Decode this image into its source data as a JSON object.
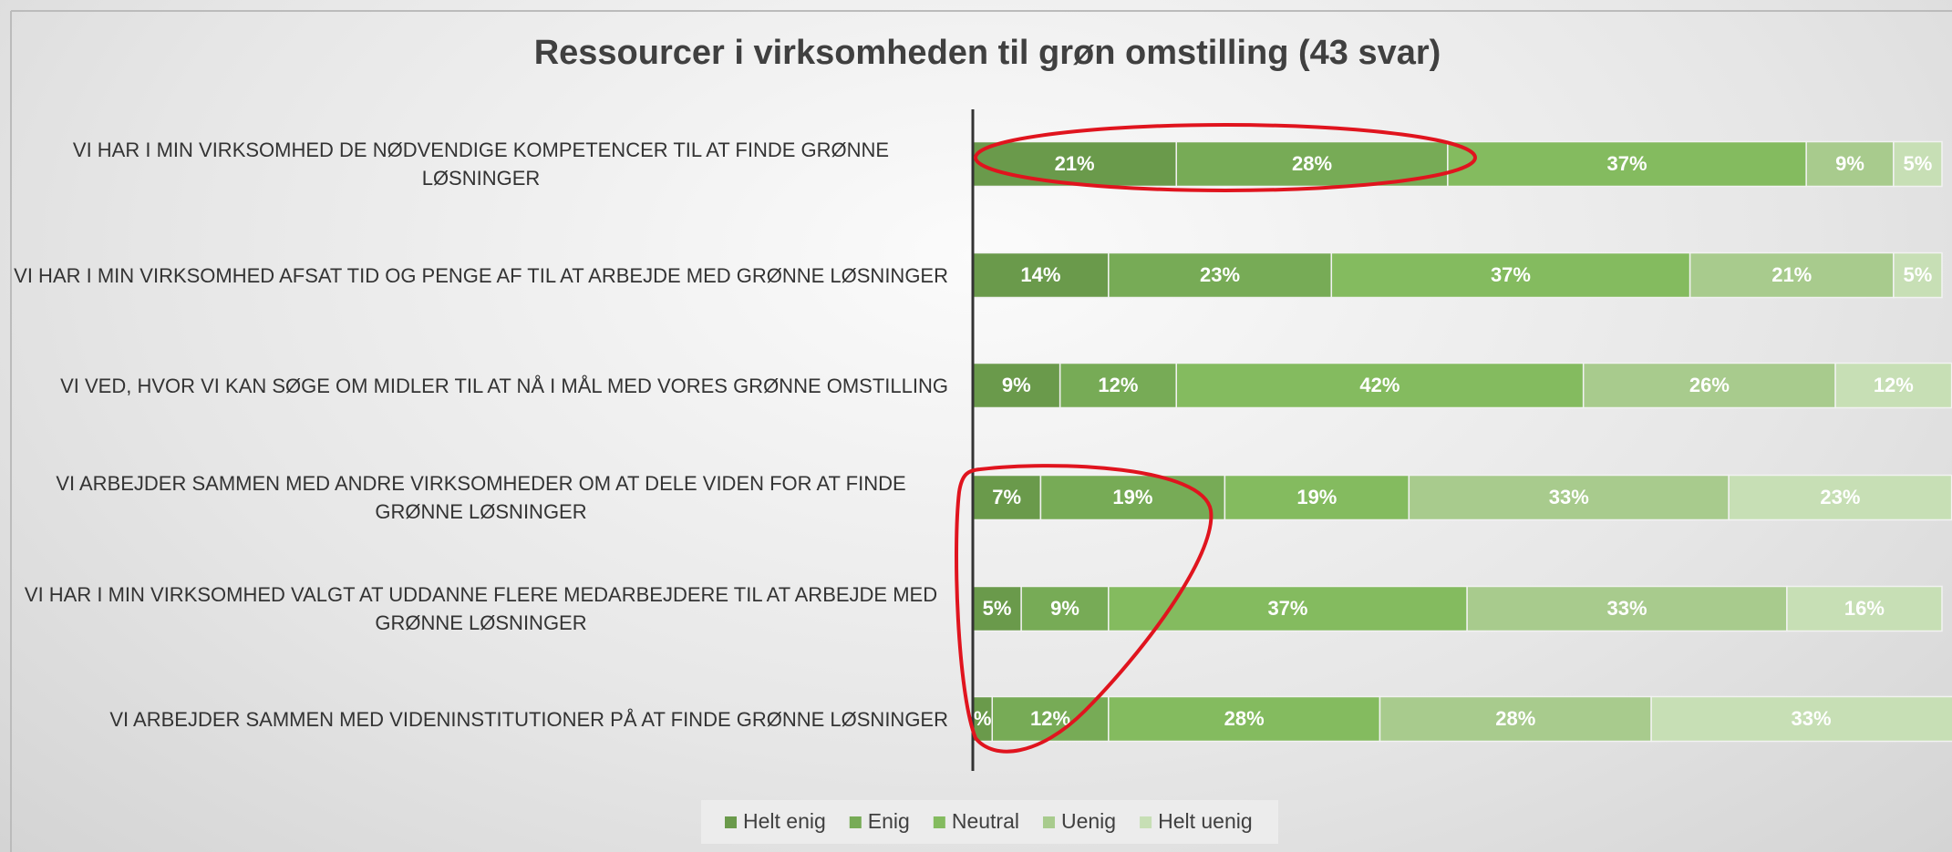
{
  "chart_data": {
    "type": "stacked_bar_horizontal",
    "title": "Ressourcer i virksomheden til grøn omstilling (43 svar)",
    "categories": [
      "VI HAR I MIN VIRKSOMHED DE NØDVENDIGE KOMPETENCER TIL AT FINDE GRØNNE LØSNINGER",
      "VI HAR I MIN VIRKSOMHED AFSAT TID OG PENGE AF TIL AT ARBEJDE MED GRØNNE LØSNINGER",
      "VI VED, HVOR VI KAN SØGE OM MIDLER TIL AT NÅ I MÅL MED VORES GRØNNE OMSTILLING",
      "VI ARBEJDER SAMMEN MED ANDRE VIRKSOMHEDER OM AT DELE VIDEN FOR AT FINDE GRØNNE LØSNINGER",
      "VI HAR I MIN VIRKSOMHED VALGT AT UDDANNE FLERE MEDARBEJDERE TIL AT ARBEJDE MED GRØNNE LØSNINGER",
      "VI ARBEJDER SAMMEN MED VIDENINSTITUTIONER PÅ AT FINDE GRØNNE LØSNINGER"
    ],
    "series": [
      {
        "name": "Helt enig",
        "color": "#6a9a4b",
        "values": [
          21,
          14,
          9,
          7,
          5,
          2
        ],
        "value_labels": [
          "21%",
          "14%",
          "9%",
          "7%",
          "5%",
          "%"
        ]
      },
      {
        "name": "Enig",
        "color": "#77ab56",
        "values": [
          28,
          23,
          12,
          19,
          9,
          12
        ],
        "value_labels": [
          "28%",
          "23%",
          "12%",
          "19%",
          "9%",
          "12%"
        ]
      },
      {
        "name": "Neutral",
        "color": "#84bb5f",
        "values": [
          37,
          37,
          42,
          19,
          37,
          28
        ],
        "value_labels": [
          "37%",
          "37%",
          "42%",
          "19%",
          "37%",
          "28%"
        ]
      },
      {
        "name": "Uenig",
        "color": "#a8cb8d",
        "values": [
          9,
          21,
          26,
          33,
          33,
          28
        ],
        "value_labels": [
          "9%",
          "21%",
          "26%",
          "33%",
          "33%",
          "28%"
        ]
      },
      {
        "name": "Helt uenig",
        "color": "#c7dfb5",
        "values": [
          5,
          5,
          12,
          23,
          16,
          33
        ],
        "value_labels": [
          "5%",
          "5%",
          "12%",
          "23%",
          "16%",
          "33%"
        ]
      }
    ],
    "xlim": [
      0,
      100
    ],
    "xticks": [
      0,
      10,
      20,
      30,
      40,
      50,
      60,
      70,
      80,
      90,
      100
    ],
    "grid": true,
    "legend": "bottom"
  }
}
